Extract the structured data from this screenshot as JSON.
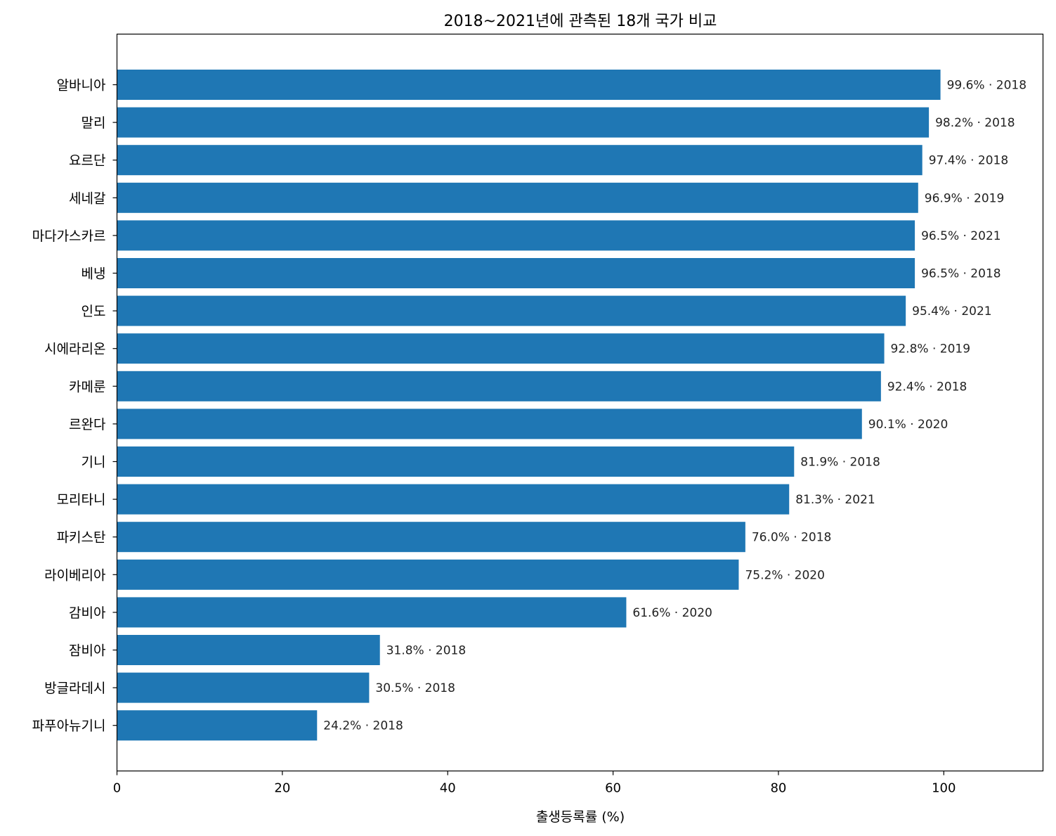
{
  "chart_data": {
    "type": "bar",
    "orientation": "horizontal",
    "title": "2018~2021년에 관측된 18개 국가 비교",
    "xlabel": "출생등록률 (%)",
    "ylabel": "",
    "xlim": [
      0,
      112
    ],
    "xticks": [
      0,
      20,
      40,
      60,
      80,
      100
    ],
    "grid": false,
    "bar_color": "#1f77b4",
    "categories": [
      "알바니아",
      "말리",
      "요르단",
      "세네갈",
      "마다가스카르",
      "베냉",
      "인도",
      "시에라리온",
      "카메룬",
      "르완다",
      "기니",
      "모리타니",
      "파키스탄",
      "라이베리아",
      "감비아",
      "잠비아",
      "방글라데시",
      "파푸아뉴기니"
    ],
    "values": [
      99.6,
      98.2,
      97.4,
      96.9,
      96.5,
      96.5,
      95.4,
      92.8,
      92.4,
      90.1,
      81.9,
      81.3,
      76.0,
      75.2,
      61.6,
      31.8,
      30.5,
      24.2
    ],
    "data_labels": [
      "99.6% · 2018",
      "98.2% · 2018",
      "97.4% · 2018",
      "96.9% · 2019",
      "96.5% · 2021",
      "96.5% · 2018",
      "95.4% · 2021",
      "92.8% · 2019",
      "92.4% · 2018",
      "90.1% · 2020",
      "81.9% · 2018",
      "81.3% · 2021",
      "76.0% · 2018",
      "75.2% · 2020",
      "61.6% · 2020",
      "31.8% · 2018",
      "30.5% · 2018",
      "24.2% · 2018"
    ]
  }
}
